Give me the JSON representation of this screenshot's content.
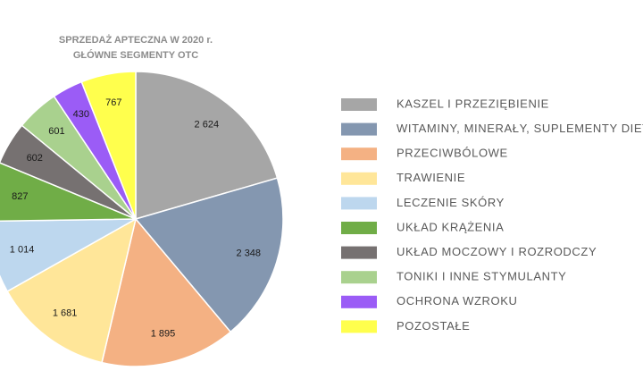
{
  "chart_data": {
    "type": "pie",
    "title": "SPRZEDAŻ APTECZNA W 2020 r.",
    "subtitle": "GŁÓWNE SEGMENTY OTC",
    "categories": [
      "KASZEL I PRZEZIĘBIENIE",
      "WITAMINY, MINERAŁY, SUPLEMENTY DIETY",
      "PRZECIWBÓLOWE",
      "TRAWIENIE",
      "LECZENIE SKÓRY",
      "UKŁAD KRĄŻENIA",
      "UKŁAD MOCZOWY I ROZRODCZY",
      "TONIKI I INNE STYMULANTY",
      "OCHRONA WZROKU",
      "POZOSTAŁE"
    ],
    "values": [
      2624,
      2348,
      1895,
      1681,
      1014,
      827,
      602,
      601,
      430,
      767
    ],
    "value_labels": [
      "2 624",
      "2 348",
      "1 895",
      "1 681",
      "1 014",
      "827",
      "602",
      "601",
      "430",
      "767"
    ],
    "colors": [
      "#a6a6a6",
      "#8497b0",
      "#f4b183",
      "#ffe699",
      "#bdd7ee",
      "#70ad47",
      "#767171",
      "#a9d18e",
      "#9b5cf6",
      "#ffff4d"
    ],
    "legend": "right"
  }
}
